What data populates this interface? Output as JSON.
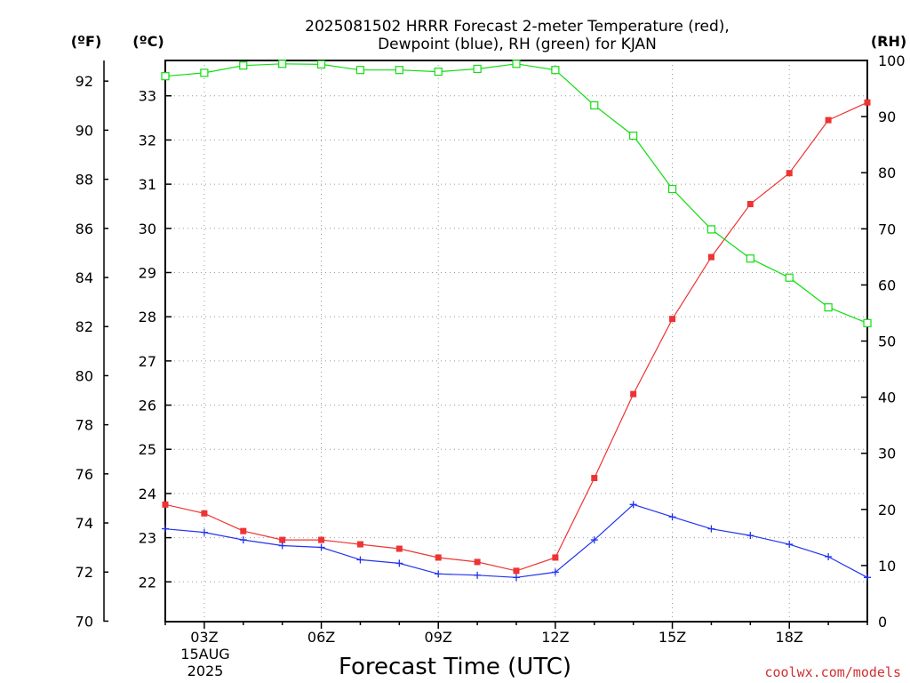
{
  "chart_data": {
    "type": "line",
    "title_line1": "2025081502 HRRR Forecast 2-meter Temperature (red),",
    "title_line2": "Dewpoint (blue), RH (green) for KJAN",
    "xlabel": "Forecast Time (UTC)",
    "left_outer_unit": "(ºF)",
    "left_inner_unit": "(ºC)",
    "right_unit": "(RH)",
    "credit": "coolwx.com/models",
    "date_label_line1": "15AUG",
    "date_label_line2": "2025",
    "x_hours": [
      2,
      3,
      4,
      5,
      6,
      7,
      8,
      9,
      10,
      11,
      12,
      13,
      14,
      15,
      16,
      17,
      18,
      19,
      20
    ],
    "x_ticks": [
      {
        "hour": 3,
        "label": "03Z"
      },
      {
        "hour": 6,
        "label": "06Z"
      },
      {
        "hour": 9,
        "label": "09Z"
      },
      {
        "hour": 12,
        "label": "12Z"
      },
      {
        "hour": 15,
        "label": "15Z"
      },
      {
        "hour": 18,
        "label": "18Z"
      }
    ],
    "celsius_axis": {
      "ylim": [
        21.1,
        33.8
      ],
      "ticks": [
        22,
        23,
        24,
        25,
        26,
        27,
        28,
        29,
        30,
        31,
        32,
        33
      ]
    },
    "fahrenheit_axis": {
      "ticks": [
        70,
        72,
        74,
        76,
        78,
        80,
        82,
        84,
        86,
        88,
        90,
        92
      ]
    },
    "rh_axis": {
      "ylim": [
        0,
        100
      ],
      "ticks": [
        0,
        10,
        20,
        30,
        40,
        50,
        60,
        70,
        80,
        90,
        100
      ]
    },
    "grid": true,
    "series": [
      {
        "name": "Temperature",
        "color": "#ee3333",
        "marker": "filled-square",
        "axis": "celsius",
        "values": [
          23.75,
          23.55,
          23.15,
          22.95,
          22.95,
          22.85,
          22.75,
          22.55,
          22.45,
          22.25,
          22.55,
          24.35,
          26.25,
          27.95,
          29.35,
          30.55,
          31.25,
          32.45,
          32.85
        ]
      },
      {
        "name": "Dewpoint",
        "color": "#2233ee",
        "marker": "plus",
        "axis": "celsius",
        "values": [
          23.2,
          23.12,
          22.95,
          22.82,
          22.78,
          22.5,
          22.42,
          22.18,
          22.15,
          22.1,
          22.22,
          22.95,
          23.75,
          23.47,
          23.2,
          23.05,
          22.85,
          22.57,
          22.1
        ]
      },
      {
        "name": "RH",
        "color": "#11dd11",
        "marker": "open-square",
        "axis": "rh",
        "values": [
          97.2,
          97.8,
          99.1,
          99.4,
          99.3,
          98.3,
          98.3,
          98.0,
          98.5,
          99.4,
          98.3,
          92.0,
          86.6,
          77.1,
          69.9,
          64.7,
          61.3,
          56.0,
          53.2
        ]
      }
    ]
  }
}
